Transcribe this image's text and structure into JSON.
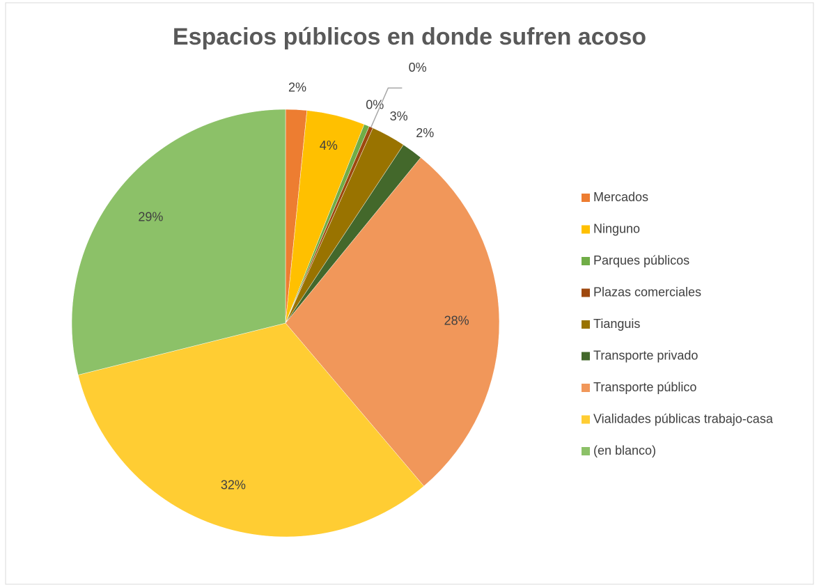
{
  "chart_data": {
    "type": "pie",
    "title": "Espacios públicos en donde sufren acoso",
    "categories": [
      "Mercados",
      "Ninguno",
      "Parques públicos",
      "Plazas comerciales",
      "Tianguis",
      "Transporte privado",
      "Transporte público",
      "Vialidades públicas trabajo-casa",
      "(en blanco)"
    ],
    "values": [
      1.6,
      4.4,
      0.4,
      0.3,
      2.6,
      1.6,
      27.9,
      32.3,
      28.9
    ],
    "value_labels": [
      "2%",
      "4%",
      "0%",
      "0%",
      "3%",
      "2%",
      "28%",
      "32%",
      "29%"
    ],
    "colors": [
      "#ED7D31",
      "#FFC000",
      "#70AD47",
      "#9E480E",
      "#997300",
      "#43682B",
      "#F1975A",
      "#FFCD33",
      "#8CC168"
    ],
    "legend": "right"
  }
}
